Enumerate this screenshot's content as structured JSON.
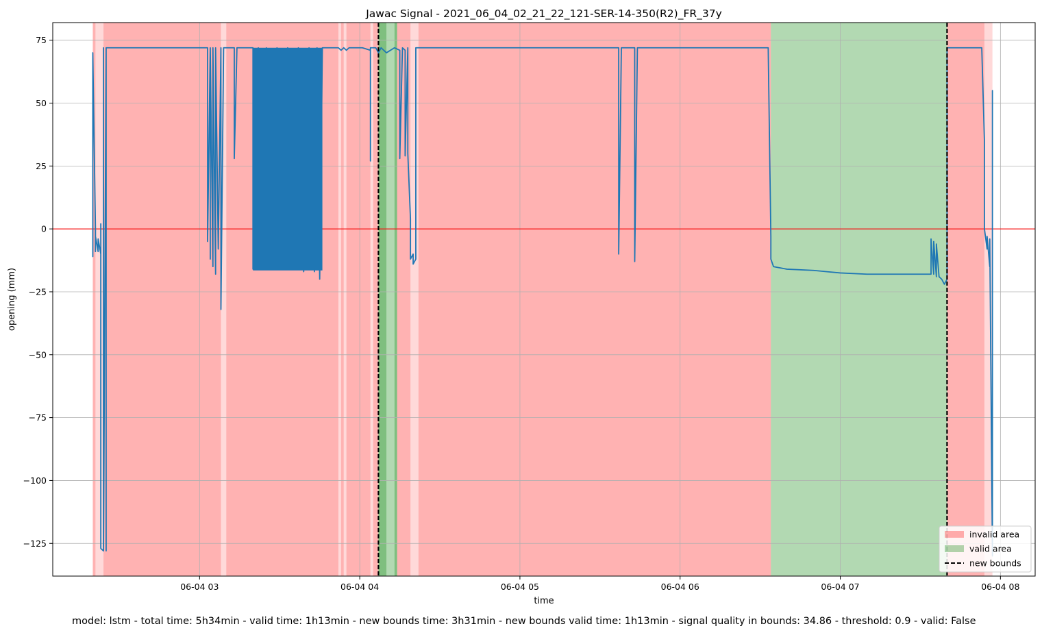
{
  "chart_data": {
    "type": "line",
    "title": "Jawac Signal - 2021_06_04_02_21_22_121-SER-14-350(R2)_FR_37y",
    "xlabel": "time",
    "ylabel": "opening (mm)",
    "x_unit": "time of day on 2021-06-04 (HH:MM)",
    "xlim": [
      "02:05",
      "08:13"
    ],
    "ylim": [
      -138,
      82
    ],
    "x_ticks": [
      {
        "label": "06-04 03",
        "value": "03:00"
      },
      {
        "label": "06-04 04",
        "value": "04:00"
      },
      {
        "label": "06-04 05",
        "value": "05:00"
      },
      {
        "label": "06-04 06",
        "value": "06:00"
      },
      {
        "label": "06-04 07",
        "value": "07:00"
      },
      {
        "label": "06-04 08",
        "value": "08:00"
      }
    ],
    "y_ticks": [
      {
        "label": "75",
        "value": 75
      },
      {
        "label": "50",
        "value": 50
      },
      {
        "label": "25",
        "value": 25
      },
      {
        "label": "0",
        "value": 0
      },
      {
        "label": "−25",
        "value": -25
      },
      {
        "label": "−50",
        "value": -50
      },
      {
        "label": "−75",
        "value": -75
      },
      {
        "label": "−100",
        "value": -100
      },
      {
        "label": "−125",
        "value": -125
      }
    ],
    "grid": true,
    "reference_line": {
      "y": 0,
      "color": "#ff0000"
    },
    "regions": [
      {
        "kind": "invalid",
        "start": "02:20",
        "end": "02:21",
        "alpha": 0.3
      },
      {
        "kind": "invalid",
        "start": "02:21",
        "end": "02:24",
        "alpha": 0.15
      },
      {
        "kind": "invalid",
        "start": "02:24",
        "end": "03:08",
        "alpha": 0.3
      },
      {
        "kind": "invalid",
        "start": "03:08",
        "end": "03:10",
        "alpha": 0.15
      },
      {
        "kind": "invalid",
        "start": "03:10",
        "end": "03:52",
        "alpha": 0.3
      },
      {
        "kind": "invalid",
        "start": "03:52",
        "end": "03:53",
        "alpha": 0.15
      },
      {
        "kind": "invalid",
        "start": "03:53",
        "end": "03:54",
        "alpha": 0.3
      },
      {
        "kind": "invalid",
        "start": "03:54",
        "end": "03:55",
        "alpha": 0.15
      },
      {
        "kind": "invalid",
        "start": "03:55",
        "end": "04:04",
        "alpha": 0.3
      },
      {
        "kind": "invalid",
        "start": "04:04",
        "end": "04:05",
        "alpha": 0.15
      },
      {
        "kind": "invalid",
        "start": "04:05",
        "end": "04:07",
        "alpha": 0.3
      },
      {
        "kind": "valid",
        "start": "04:07",
        "end": "04:10",
        "alpha": 0.5
      },
      {
        "kind": "valid",
        "start": "04:10",
        "end": "04:13",
        "alpha": 0.3
      },
      {
        "kind": "valid",
        "start": "04:13",
        "end": "04:14",
        "alpha": 0.5
      },
      {
        "kind": "invalid",
        "start": "04:14",
        "end": "04:19",
        "alpha": 0.3
      },
      {
        "kind": "invalid",
        "start": "04:19",
        "end": "04:22",
        "alpha": 0.15
      },
      {
        "kind": "invalid",
        "start": "04:22",
        "end": "06:34",
        "alpha": 0.3
      },
      {
        "kind": "valid",
        "start": "06:34",
        "end": "07:40",
        "alpha": 0.3
      },
      {
        "kind": "invalid",
        "start": "07:40",
        "end": "07:54",
        "alpha": 0.3
      },
      {
        "kind": "invalid",
        "start": "07:54",
        "end": "07:57",
        "alpha": 0.15
      }
    ],
    "series": [
      {
        "name": "opening (mm)",
        "color": "#1f77b4",
        "points": [
          [
            "02:20",
            -5
          ],
          [
            "02:20",
            -11
          ],
          [
            "02:20",
            70
          ],
          [
            "02:21",
            0
          ],
          [
            "02:21",
            -9
          ],
          [
            "02:21",
            -3
          ],
          [
            "02:22",
            -9
          ],
          [
            "02:22",
            -4
          ],
          [
            "02:23",
            -10
          ],
          [
            "02:23",
            2
          ],
          [
            "02:23",
            -30
          ],
          [
            "02:23",
            -127
          ],
          [
            "02:24",
            -128
          ],
          [
            "02:24",
            72
          ],
          [
            "02:24",
            -128
          ],
          [
            "02:25",
            72
          ],
          [
            "02:25",
            -128
          ],
          [
            "02:25",
            -3
          ],
          [
            "02:25",
            72
          ],
          [
            "02:26",
            72
          ],
          [
            "03:03",
            72
          ],
          [
            "03:03",
            -5
          ],
          [
            "03:04",
            72
          ],
          [
            "03:04",
            -12
          ],
          [
            "03:04",
            72
          ],
          [
            "03:05",
            -15
          ],
          [
            "03:05",
            72
          ],
          [
            "03:06",
            -18
          ],
          [
            "03:06",
            72
          ],
          [
            "03:07",
            -8
          ],
          [
            "03:08",
            72
          ],
          [
            "03:08",
            -32
          ],
          [
            "03:09",
            72
          ],
          [
            "03:13",
            72
          ],
          [
            "03:13",
            28
          ],
          [
            "03:14",
            72
          ],
          [
            "03:20",
            72
          ],
          [
            "03:20",
            -16
          ],
          [
            "03:22",
            72
          ],
          [
            "03:23",
            -16
          ],
          [
            "03:25",
            72
          ],
          [
            "03:27",
            -16
          ],
          [
            "03:29",
            72
          ],
          [
            "03:31",
            -16
          ],
          [
            "03:33",
            72
          ],
          [
            "03:35",
            -16
          ],
          [
            "03:37",
            72
          ],
          [
            "03:39",
            -17
          ],
          [
            "03:41",
            72
          ],
          [
            "03:43",
            -17
          ],
          [
            "03:44",
            72
          ],
          [
            "03:45",
            -20
          ],
          [
            "03:46",
            72
          ],
          [
            "03:52",
            72
          ],
          [
            "03:53",
            71
          ],
          [
            "03:54",
            72
          ],
          [
            "03:55",
            71
          ],
          [
            "03:56",
            72
          ],
          [
            "04:01",
            72
          ],
          [
            "04:04",
            71
          ],
          [
            "04:04",
            27
          ],
          [
            "04:04",
            72
          ],
          [
            "04:06",
            72
          ],
          [
            "04:07",
            70
          ],
          [
            "04:08",
            72
          ],
          [
            "04:10",
            70
          ],
          [
            "04:13",
            72
          ],
          [
            "04:15",
            71
          ],
          [
            "04:15",
            28
          ],
          [
            "04:16",
            72
          ],
          [
            "04:17",
            71
          ],
          [
            "04:17",
            29
          ],
          [
            "04:18",
            72
          ],
          [
            "04:18",
            30
          ],
          [
            "04:19",
            4
          ],
          [
            "04:19",
            -12
          ],
          [
            "04:20",
            -10
          ],
          [
            "04:20",
            -14
          ],
          [
            "04:21",
            -12
          ],
          [
            "04:21",
            72
          ],
          [
            "04:22",
            72
          ],
          [
            "04:22",
            72
          ],
          [
            "05:37",
            72
          ],
          [
            "05:37",
            -10
          ],
          [
            "05:38",
            72
          ],
          [
            "05:43",
            72
          ],
          [
            "05:43",
            -13
          ],
          [
            "05:44",
            72
          ],
          [
            "06:33",
            72
          ],
          [
            "06:34",
            -3
          ],
          [
            "06:34",
            -12
          ],
          [
            "06:35",
            -15
          ],
          [
            "06:40",
            -16
          ],
          [
            "06:50",
            -16.5
          ],
          [
            "06:55",
            -17
          ],
          [
            "07:00",
            -17.5
          ],
          [
            "07:10",
            -18
          ],
          [
            "07:20",
            -18
          ],
          [
            "07:30",
            -18
          ],
          [
            "07:34",
            -18
          ],
          [
            "07:34",
            -4
          ],
          [
            "07:35",
            -18
          ],
          [
            "07:35",
            -5
          ],
          [
            "07:36",
            -19
          ],
          [
            "07:36",
            -6
          ],
          [
            "07:37",
            -19
          ],
          [
            "07:38",
            -20
          ],
          [
            "07:39",
            -22
          ],
          [
            "07:40",
            -20
          ],
          [
            "07:40",
            72
          ],
          [
            "07:53",
            72
          ],
          [
            "07:54",
            35
          ],
          [
            "07:54",
            0
          ],
          [
            "07:55",
            -8
          ],
          [
            "07:55",
            -3
          ],
          [
            "07:56",
            -15
          ],
          [
            "07:56",
            -4
          ],
          [
            "07:57",
            -130
          ],
          [
            "07:57",
            55
          ],
          [
            "07:57",
            -18
          ]
        ]
      }
    ],
    "new_bounds": [
      "04:07",
      "07:40"
    ],
    "legend": {
      "placement": "lower-right",
      "entries": [
        {
          "label": "invalid area",
          "color": "#ff0000",
          "kind": "patch",
          "alpha": 0.3
        },
        {
          "label": "valid area",
          "color": "#008000",
          "kind": "patch",
          "alpha": 0.3
        },
        {
          "label": "new bounds",
          "color": "#000000",
          "kind": "dashed-line"
        }
      ]
    }
  },
  "footer": {
    "summary": "model: lstm - total time: 5h34min - valid time: 1h13min - new bounds time: 3h31min - new bounds valid time: 1h13min - signal quality in bounds: 34.86 - threshold: 0.9 - valid: False"
  }
}
